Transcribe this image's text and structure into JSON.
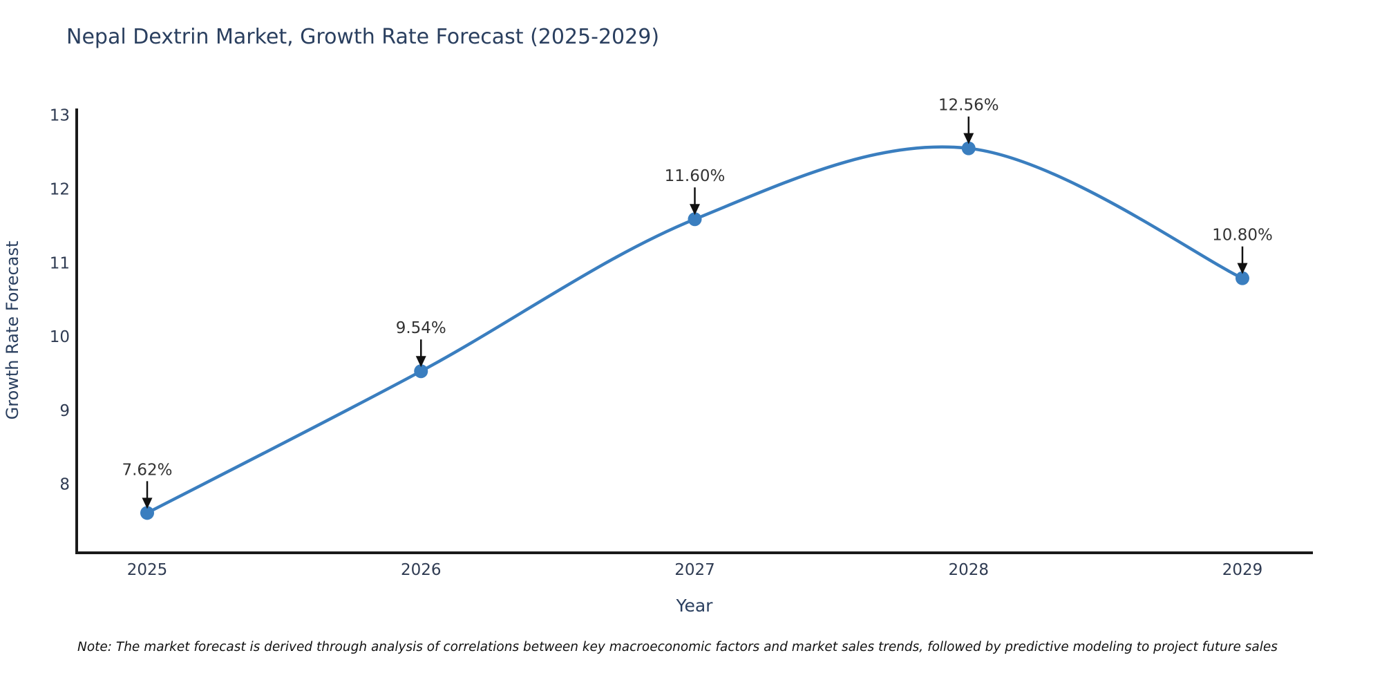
{
  "title": "Nepal Dextrin Market, Growth Rate Forecast (2025-2029)",
  "note": "Note: The market forecast is derived through analysis of correlations between key macroeconomic factors and market sales trends, followed by predictive modeling to project future sales",
  "chart_data": {
    "type": "line",
    "title": "Nepal Dextrin Market, Growth Rate Forecast (2025-2029)",
    "xlabel": "Year",
    "ylabel": "Growth Rate Forecast",
    "categories": [
      "2025",
      "2026",
      "2027",
      "2028",
      "2029"
    ],
    "values": [
      7.62,
      9.54,
      11.6,
      12.56,
      10.8
    ],
    "point_labels": [
      "7.62%",
      "9.54%",
      "11.60%",
      "12.56%",
      "10.80%"
    ],
    "ylim": [
      7.08,
      13.1
    ],
    "yticks": [
      8,
      9,
      10,
      11,
      12,
      13
    ],
    "grid": false,
    "legend": "none",
    "colors": {
      "line": "#3a7ebf",
      "marker": "#3a7ebf",
      "axis": "#1a1a1a",
      "arrow": "#111111",
      "annotation_text": "#333333",
      "tick_text": "#2f3b52",
      "axis_title_text": "#2a3f5f"
    }
  }
}
